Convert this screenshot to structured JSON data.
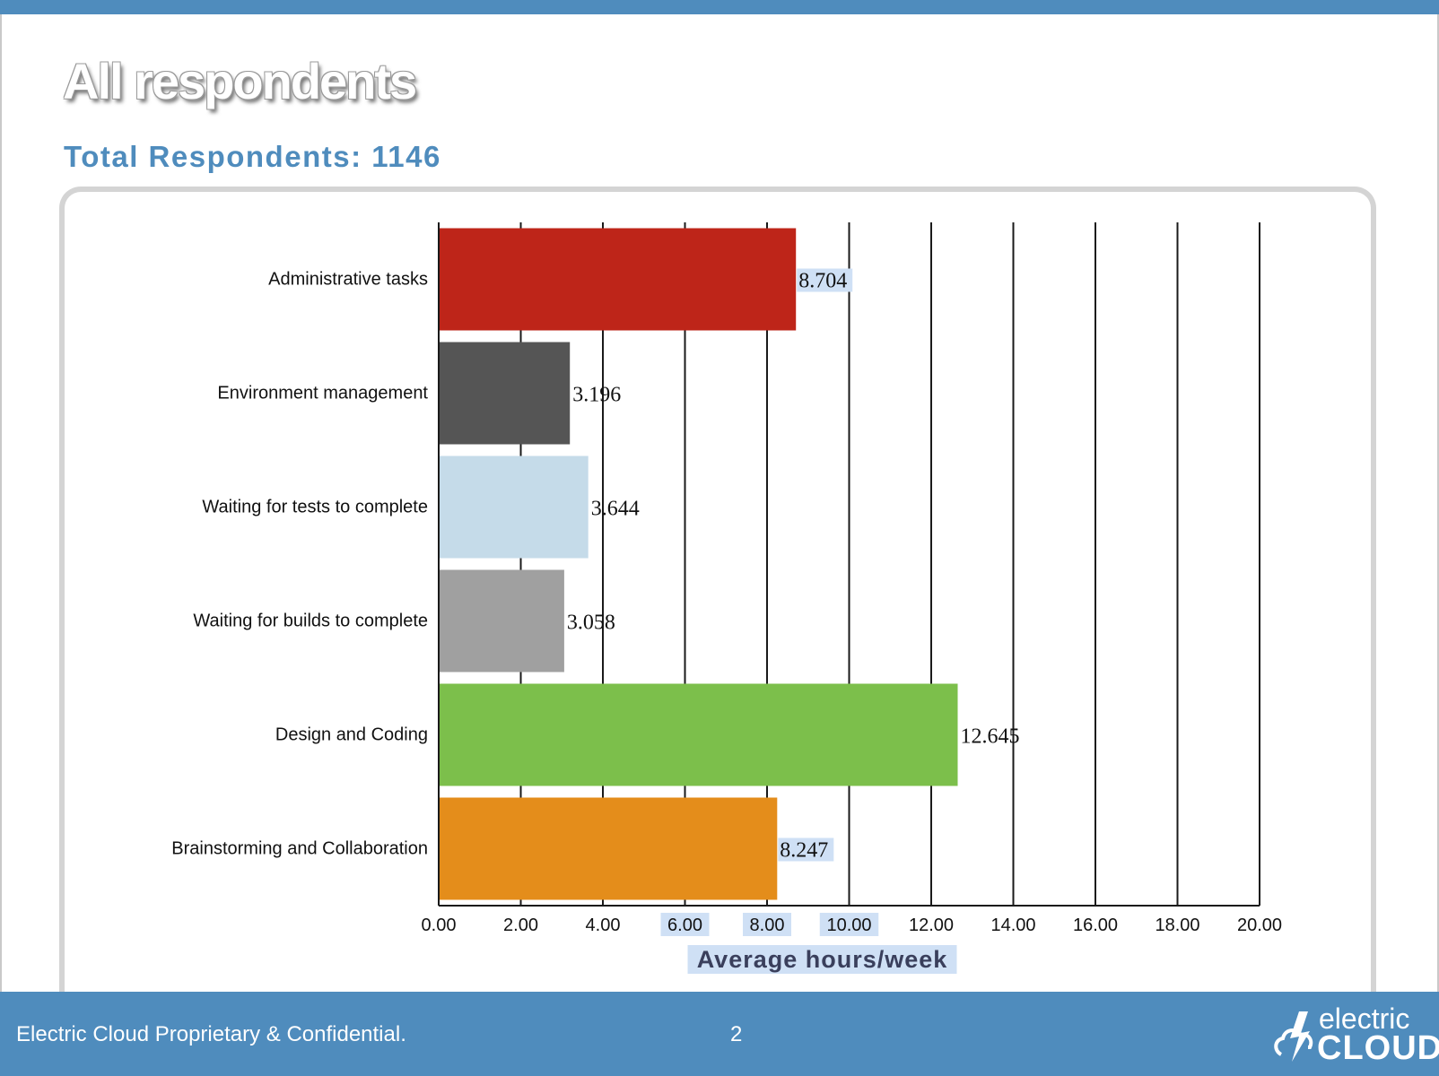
{
  "slide": {
    "title": "All respondents",
    "subtitle": "Total Respondents: 1146"
  },
  "footer": {
    "text": "Electric Cloud Proprietary & Confidential.",
    "page_number": "2",
    "logo_top": "electric",
    "logo_bottom": "CLOUD"
  },
  "colors": {
    "bar_colors": [
      "#be2519",
      "#555555",
      "#c5dbe9",
      "#a0a0a0",
      "#7cbf4b",
      "#e48d1b"
    ],
    "brand_blue": "#4f8cbd",
    "highlight": "#cfe0f5"
  },
  "chart_data": {
    "type": "bar",
    "orientation": "horizontal",
    "categories": [
      "Administrative tasks",
      "Environment management",
      "Waiting for tests to complete",
      "Waiting for builds to complete",
      "Design and Coding",
      "Brainstorming and Collaboration"
    ],
    "values": [
      8.704,
      3.196,
      3.644,
      3.058,
      12.645,
      8.247
    ],
    "value_labels": [
      "8.704",
      "3.196",
      "3.644",
      "3.058",
      "12.645",
      "8.247"
    ],
    "xlim": [
      0,
      20
    ],
    "xticks": [
      0,
      2,
      4,
      6,
      8,
      10,
      12,
      14,
      16,
      18,
      20
    ],
    "xtick_labels": [
      "0.00",
      "2.00",
      "4.00",
      "6.00",
      "8.00",
      "10.00",
      "12.00",
      "14.00",
      "16.00",
      "18.00",
      "20.00"
    ],
    "xlabel": "Average hours/week",
    "ylabel": "",
    "grid": true,
    "legend": "none"
  }
}
